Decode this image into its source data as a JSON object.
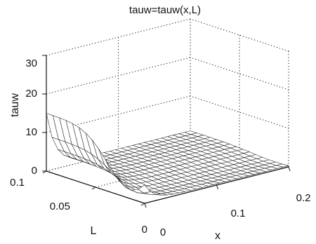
{
  "chart_data": {
    "type": "surface",
    "title": "tauw=tauw(x,L)",
    "xlabel": "x",
    "ylabel": "L",
    "zlabel": "tauw",
    "xlim": [
      0,
      0.2
    ],
    "ylim": [
      0,
      0.1
    ],
    "zlim": [
      0,
      30
    ],
    "x_ticks": [
      "0",
      "0.1",
      "0.2"
    ],
    "y_ticks": [
      "0",
      "0.05",
      "0.1"
    ],
    "z_ticks": [
      "0",
      "10",
      "20",
      "30"
    ],
    "grid": true,
    "mesh": {
      "x_samples": 26,
      "y_samples": 16
    },
    "series": [
      {
        "x": [
          0,
          0.2
        ],
        "y": [
          0,
          0.1
        ],
        "z_min": 0,
        "z_max": 15,
        "z_at_x0_edge": 15,
        "z_at_x_max": 1
      }
    ],
    "colors": {
      "axis": "#111111",
      "mesh": "#222222",
      "fill": "#ffffff"
    }
  }
}
